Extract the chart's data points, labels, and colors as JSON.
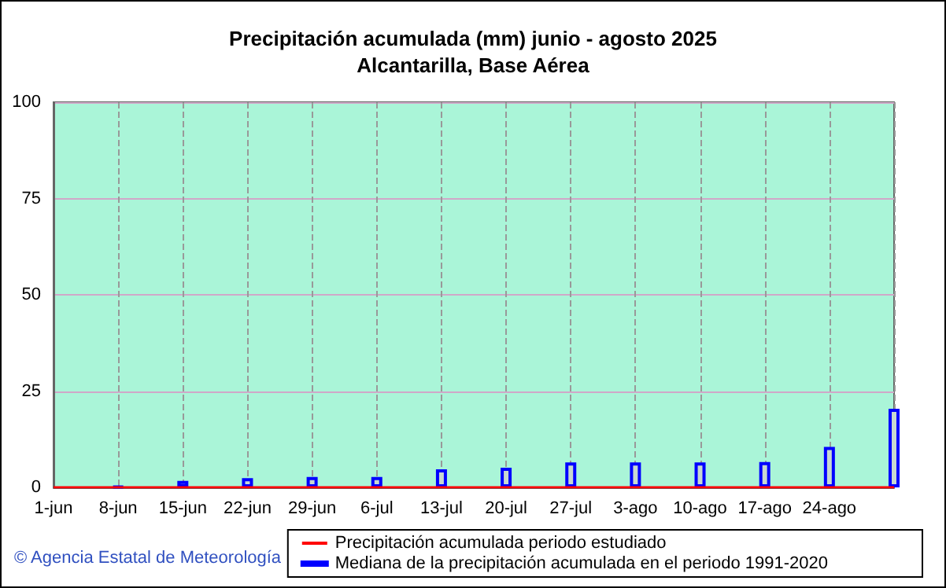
{
  "chart_data": {
    "type": "bar",
    "title": "Precipitación acumulada (mm) junio - agosto 2025",
    "subtitle": "Alcantarilla, Base Aérea",
    "categories": [
      "1-jun",
      "8-jun",
      "15-jun",
      "22-jun",
      "29-jun",
      "6-jul",
      "13-jul",
      "20-jul",
      "27-jul",
      "3-ago",
      "10-ago",
      "17-ago",
      "24-ago",
      null
    ],
    "series": [
      {
        "name": "Precipitación acumulada periodo estudiado",
        "color": "#ff0000",
        "type": "line",
        "values": [
          0,
          0,
          0,
          0,
          0,
          0,
          0,
          0,
          0,
          0,
          0,
          0,
          0,
          0
        ]
      },
      {
        "name": "Mediana de la precipitación acumulada en el periodo 1991-2020",
        "color": "#0000ff",
        "values": [
          null,
          0.2,
          1.7,
          2.4,
          2.7,
          2.7,
          4.7,
          5.1,
          6.5,
          6.5,
          6.5,
          6.6,
          10.5,
          20.4
        ]
      }
    ],
    "ylim": [
      0,
      100
    ],
    "yticks": [
      0,
      25,
      50,
      75,
      100
    ],
    "grid": true,
    "legend": "bottom right",
    "annotations": [
      "© Agencia Estatal de Meteorología"
    ]
  }
}
